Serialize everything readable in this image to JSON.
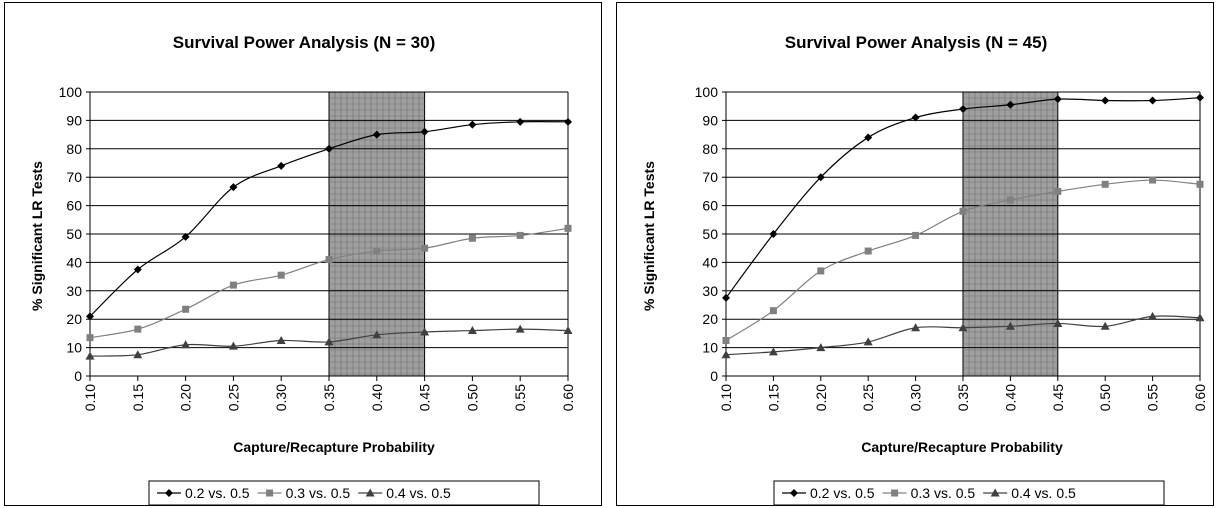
{
  "chart_data": [
    {
      "type": "line",
      "title": "Survival Power Analysis (N = 30)",
      "xlabel": "Capture/Recapture Probability",
      "ylabel": "% Significant LR Tests",
      "x": [
        "0.10",
        "0.15",
        "0.20",
        "0.25",
        "0.30",
        "0.35",
        "0.40",
        "0.45",
        "0.50",
        "0.55",
        "0.60"
      ],
      "ylim": [
        0,
        100
      ],
      "yticks": [
        0,
        10,
        20,
        30,
        40,
        50,
        60,
        70,
        80,
        90,
        100
      ],
      "grid": "horizontal",
      "legend": "bottom",
      "highlight_range": [
        "0.35",
        "0.45"
      ],
      "series": [
        {
          "name": "0.2 vs. 0.5",
          "marker": "diamond",
          "values": [
            21,
            37.5,
            49,
            66.5,
            74,
            80,
            85,
            86,
            88.5,
            89.5,
            89.5
          ]
        },
        {
          "name": "0.3 vs. 0.5",
          "marker": "square",
          "values": [
            13.5,
            16.5,
            23.5,
            32,
            35.5,
            41,
            44,
            45,
            48.5,
            49.5,
            52
          ]
        },
        {
          "name": "0.4 vs. 0.5",
          "marker": "triangle",
          "values": [
            7,
            7.5,
            11,
            10.5,
            12.5,
            12,
            14.5,
            15.5,
            16,
            16.5,
            16
          ]
        }
      ]
    },
    {
      "type": "line",
      "title": "Survival Power Analysis (N = 45)",
      "xlabel": "Capture/Recapture Probability",
      "ylabel": "% Significant LR Tests",
      "x": [
        "0.10",
        "0.15",
        "0.20",
        "0.25",
        "0.30",
        "0.35",
        "0.40",
        "0.45",
        "0.50",
        "0.55",
        "0.60"
      ],
      "ylim": [
        0,
        100
      ],
      "yticks": [
        0,
        10,
        20,
        30,
        40,
        50,
        60,
        70,
        80,
        90,
        100
      ],
      "grid": "horizontal",
      "legend": "bottom",
      "highlight_range": [
        "0.35",
        "0.45"
      ],
      "series": [
        {
          "name": "0.2 vs. 0.5",
          "marker": "diamond",
          "values": [
            27.5,
            50,
            70,
            84,
            91,
            94,
            95.5,
            97.5,
            97,
            97,
            98
          ]
        },
        {
          "name": "0.3 vs. 0.5",
          "marker": "square",
          "values": [
            12.5,
            23,
            37,
            44,
            49.5,
            58,
            62,
            65,
            67.5,
            69,
            67.5
          ]
        },
        {
          "name": "0.4 vs. 0.5",
          "marker": "triangle",
          "values": [
            7.5,
            8.5,
            10,
            12,
            17,
            17,
            17.5,
            18.5,
            17.5,
            21,
            20.5
          ]
        }
      ]
    }
  ],
  "colors": {
    "series": [
      "#000000",
      "#808080",
      "#404040"
    ],
    "highlight": "#a0a0a0",
    "grid": "#000000"
  }
}
